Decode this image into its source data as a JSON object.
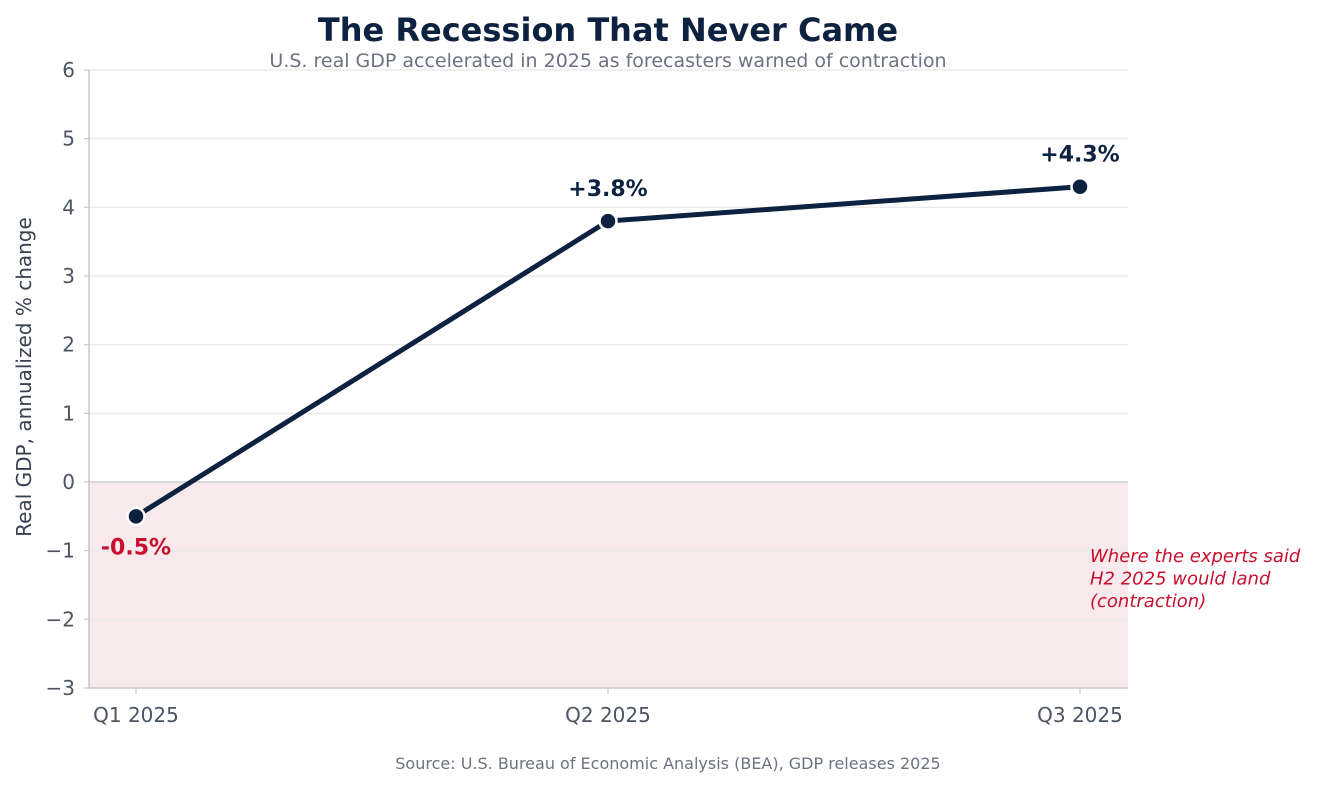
{
  "chart_data": {
    "type": "line",
    "title": "The Recession That Never Came",
    "subtitle": "U.S. real GDP accelerated in 2025 as forecasters warned of contraction",
    "xlabel": "",
    "ylabel": "Real GDP, annualized % change",
    "categories": [
      "Q1 2025",
      "Q2 2025",
      "Q3 2025"
    ],
    "series": [
      {
        "values": [
          -0.5,
          3.8,
          4.3
        ],
        "data_labels": [
          "-0.5%",
          "+3.8%",
          "+4.3%"
        ]
      }
    ],
    "ylim": [
      -3,
      6
    ],
    "yticks": [
      -3,
      -2,
      -1,
      0,
      1,
      2,
      3,
      4,
      5,
      6
    ],
    "ytick_labels": [
      "−3",
      "−2",
      "−1",
      "0",
      "1",
      "2",
      "3",
      "4",
      "5",
      "6"
    ],
    "grid": true,
    "shaded_region": {
      "y_from": -3,
      "y_to": 0,
      "annotation_lines": [
        "Where the experts said",
        "H2 2025 would land",
        "(contraction)"
      ]
    },
    "source": "Source: U.S. Bureau of Economic Analysis (BEA), GDP releases 2025",
    "colors": {
      "line": "#0d2240",
      "negative_label": "#c8102e",
      "positive_label": "#0d2240",
      "shade": "#f8e9ec",
      "annotation": "#c8102e",
      "title": "#0d2240",
      "subtitle": "#6b7280",
      "tick": "#4b5563",
      "axis_label": "#374151",
      "grid": "#ebebeb",
      "zero_line": "#d9d9d9",
      "axis": "#c8c8c8",
      "source": "#6b7280"
    }
  }
}
